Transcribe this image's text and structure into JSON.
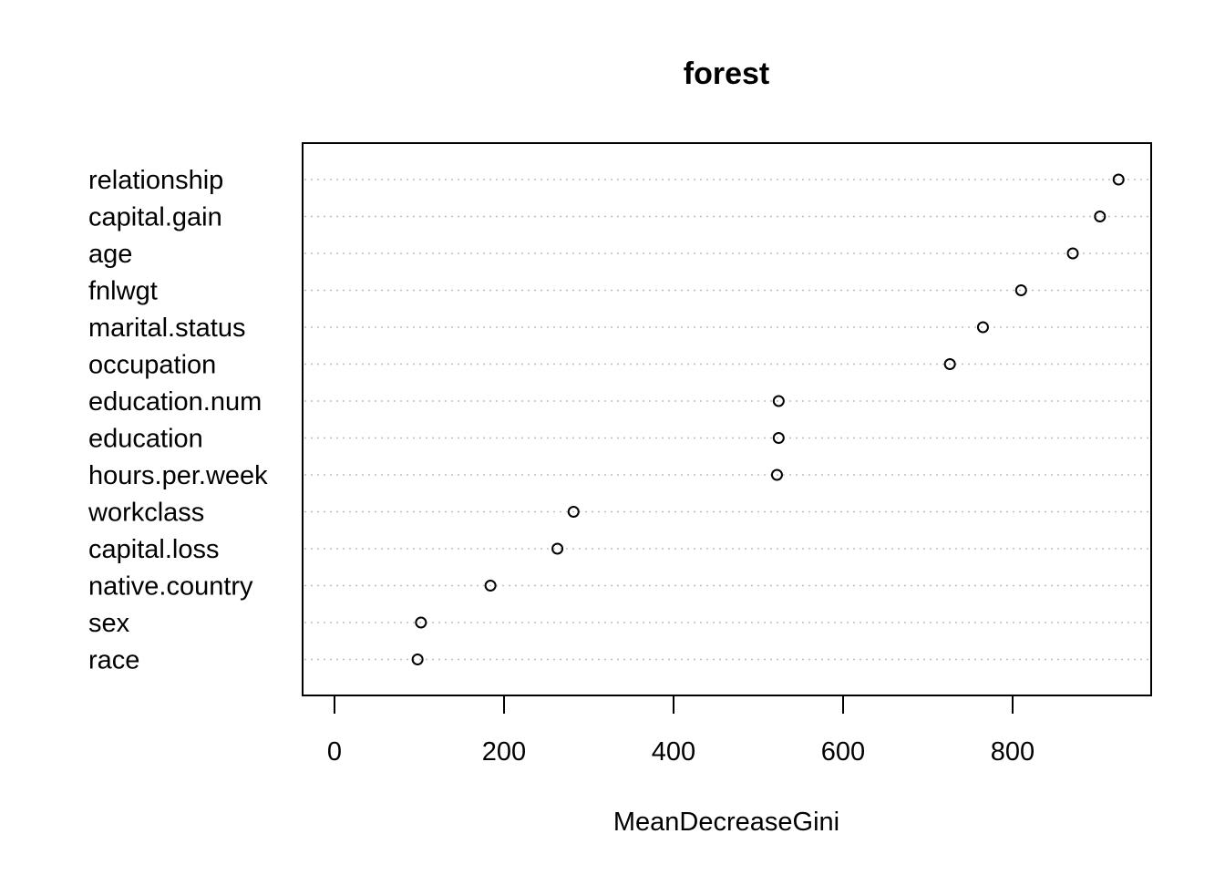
{
  "chart_data": {
    "type": "scatter",
    "subtype": "dotchart",
    "title": "forest",
    "xlabel": "MeanDecreaseGini",
    "ylabel": "",
    "xlim": [
      -20,
      960
    ],
    "xticks": [
      0,
      200,
      400,
      600,
      800
    ],
    "grid": "dotted horizontal lines per category",
    "marker": "open circle",
    "categories": [
      "relationship",
      "capital.gain",
      "age",
      "fnlwgt",
      "marital.status",
      "occupation",
      "education.num",
      "education",
      "hours.per.week",
      "workclass",
      "capital.loss",
      "native.country",
      "sex",
      "race"
    ],
    "values": [
      925,
      903,
      871,
      810,
      765,
      726,
      524,
      524,
      522,
      282,
      263,
      184,
      102,
      98
    ]
  }
}
